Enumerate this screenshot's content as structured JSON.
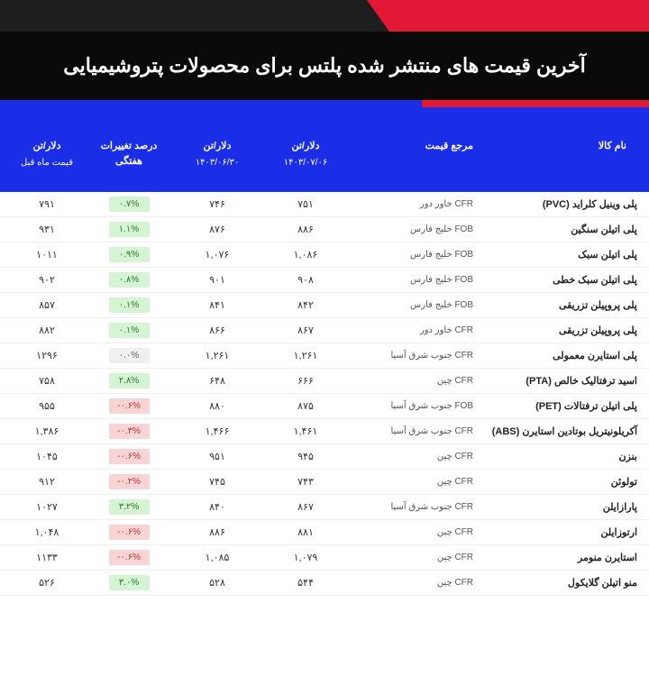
{
  "title": "آخرین قیمت های منتشر شده پلتس برای محصولات پتروشیمیایی",
  "headers": {
    "name": "نام کالا",
    "ref": "مرجع قیمت",
    "price1_top": "دلار/تن",
    "price1_sub": "۱۴۰۳/۰۷/۰۶",
    "price2_top": "دلار/تن",
    "price2_sub": "۱۴۰۳/۰۶/۳۰",
    "change": "درصد تغییرات هفتگی",
    "month_top": "دلار/تن",
    "month_sub": "قیمت ماه قبل"
  },
  "rows": [
    {
      "name": "پلی وینیل کلراید (PVC)",
      "ref": "CFR خاور دور",
      "p1": "۷۵۱",
      "p2": "۷۴۶",
      "ch": "۰.۷%",
      "cls": "pos",
      "m": "۷۹۱"
    },
    {
      "name": "پلی اتیلن سنگین",
      "ref": "FOB خلیج فارس",
      "p1": "۸۸۶",
      "p2": "۸۷۶",
      "ch": "۱.۱%",
      "cls": "pos",
      "m": "۹۳۱"
    },
    {
      "name": "پلی اتیلن سبک",
      "ref": "FOB خلیج فارس",
      "p1": "۱,۰۸۶",
      "p2": "۱,۰۷۶",
      "ch": "۰.۹%",
      "cls": "pos",
      "m": "۱۰۱۱"
    },
    {
      "name": "پلی اتیلن سبک خطی",
      "ref": "FOB خلیج فارس",
      "p1": "۹۰۸",
      "p2": "۹۰۱",
      "ch": "۰.۸%",
      "cls": "pos",
      "m": "۹۰۲"
    },
    {
      "name": "پلی پروپیلن تزریقی",
      "ref": "FOB خلیج فارس",
      "p1": "۸۴۲",
      "p2": "۸۴۱",
      "ch": "۰.۱%",
      "cls": "pos",
      "m": "۸۵۷"
    },
    {
      "name": "پلی پروپیلن تزریقی",
      "ref": "CFR خاور دور",
      "p1": "۸۶۷",
      "p2": "۸۶۶",
      "ch": "۰.۱%",
      "cls": "pos",
      "m": "۸۸۲"
    },
    {
      "name": "پلی استایرن معمولی",
      "ref": "CFR جنوب شرق آسیا",
      "p1": "۱,۲۶۱",
      "p2": "۱,۲۶۱",
      "ch": "۰.۰%",
      "cls": "neu",
      "m": "۱۲۹۶"
    },
    {
      "name": "اسید ترفتالیک خالص (PTA)",
      "ref": "CFR چین",
      "p1": "۶۶۶",
      "p2": "۶۴۸",
      "ch": "۲.۸%",
      "cls": "pos",
      "m": "۷۵۸"
    },
    {
      "name": "پلی اتیلن ترفتالات (PET)",
      "ref": "FOB جنوب شرق آسیا",
      "p1": "۸۷۵",
      "p2": "۸۸۰",
      "ch": "-۰.۶%",
      "cls": "neg",
      "m": "۹۵۵"
    },
    {
      "name": "آکریلونیتریل بوتادین استایرن (ABS)",
      "ref": "CFR جنوب شرق آسیا",
      "p1": "۱,۴۶۱",
      "p2": "۱,۴۶۶",
      "ch": "-۰.۳%",
      "cls": "neg",
      "m": "۱,۳۸۶"
    },
    {
      "name": "بنزن",
      "ref": "CFR چین",
      "p1": "۹۴۵",
      "p2": "۹۵۱",
      "ch": "-۰.۶%",
      "cls": "neg",
      "m": "۱۰۴۵"
    },
    {
      "name": "تولوئن",
      "ref": "CFR چین",
      "p1": "۷۴۳",
      "p2": "۷۴۵",
      "ch": "-۰.۲%",
      "cls": "neg",
      "m": "۹۱۲"
    },
    {
      "name": "پارازایلن",
      "ref": "CFR جنوب شرق آسیا",
      "p1": "۸۶۷",
      "p2": "۸۴۰",
      "ch": "۳.۲%",
      "cls": "pos",
      "m": "۱۰۲۷"
    },
    {
      "name": "ارتوزایلن",
      "ref": "CFR چین",
      "p1": "۸۸۱",
      "p2": "۸۸۶",
      "ch": "-۰.۶%",
      "cls": "neg",
      "m": "۱,۰۴۸"
    },
    {
      "name": "استایرن منومر",
      "ref": "CFR چین",
      "p1": "۱,۰۷۹",
      "p2": "۱,۰۸۵",
      "ch": "-۰.۶%",
      "cls": "neg",
      "m": "۱۱۳۳"
    },
    {
      "name": "منو اتیلن گلایکول",
      "ref": "CFR چین",
      "p1": "۵۴۴",
      "p2": "۵۲۸",
      "ch": "۳.۰%",
      "cls": "pos",
      "m": "۵۲۶"
    }
  ]
}
